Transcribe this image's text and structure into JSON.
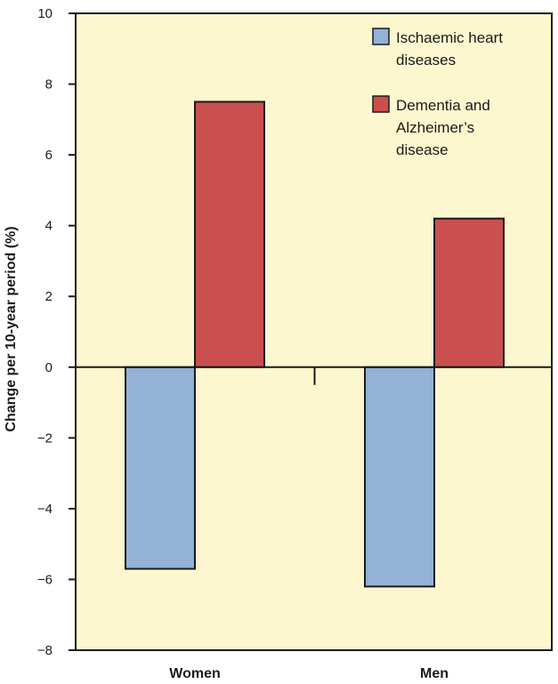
{
  "chart_data": {
    "type": "bar",
    "title": "",
    "xlabel": "",
    "ylabel": "Change per 10-year period (%)",
    "categories": [
      "Women",
      "Men"
    ],
    "series": [
      {
        "name": "Ischaemic heart diseases",
        "values": [
          -5.7,
          -6.2
        ],
        "color": "#94b1d6"
      },
      {
        "name": "Dementia and Alzheimer’s disease",
        "values": [
          7.5,
          4.2
        ],
        "color": "#c9504f"
      }
    ],
    "ylim": [
      -8,
      10
    ],
    "yticks": [
      10,
      8,
      6,
      4,
      2,
      0,
      -2,
      -4,
      -6,
      -8
    ],
    "ytick_labels": [
      "10",
      "8",
      "6",
      "4",
      "2",
      "0",
      "−2",
      "−4",
      "−6",
      "−8"
    ],
    "grid": false,
    "legend_position": "top-right",
    "legend": [
      {
        "lines": [
          "Ischaemic heart",
          "diseases"
        ],
        "color": "#94b1d6"
      },
      {
        "lines": [
          "Dementia and",
          "Alzheimer’s",
          "disease"
        ],
        "color": "#c9504f"
      }
    ],
    "plot_background": "#fdf7cf",
    "axis_color": "#1a1a1a"
  }
}
